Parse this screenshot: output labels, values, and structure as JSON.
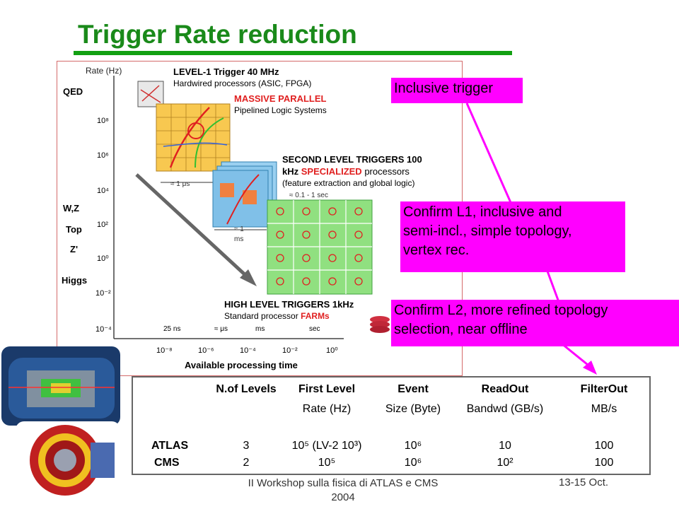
{
  "slide": {
    "title": "Trigger Rate reduction",
    "footer_left": "II Workshop sulla fisica di ATLAS e CMS\n2004",
    "footer_left_line1": "II Workshop sulla fisica di ATLAS e CMS",
    "footer_left_line2": "2004",
    "footer_right": "13-15 Oct."
  },
  "callouts": {
    "c1": "Inclusive trigger",
    "c2": "Confirm L1, inclusive and semi-incl., simple topology, vertex rec.",
    "c2_l1": "Confirm L1, inclusive and",
    "c2_l2": "semi-incl., simple topology,",
    "c2_l3": "vertex rec.",
    "c3_l1": "Confirm L2, more refined topology",
    "c3_l2": "selection, near offline"
  },
  "figure": {
    "rate_label": "Rate (Hz)",
    "physics_labels": [
      "QED",
      "W,Z",
      "Top",
      "Z'",
      "Higgs"
    ],
    "y_ticks": [
      "10⁸",
      "10⁶",
      "10⁴",
      "10²",
      "10⁰",
      "10⁻²",
      "10⁻⁴"
    ],
    "x_ticks": [
      "10⁻⁸",
      "10⁻⁶",
      "10⁻⁴",
      "10⁻²",
      "10⁰"
    ],
    "x_axis_label": "Available processing time",
    "time_marks": [
      "25 ns",
      "≈ μs",
      "ms",
      "sec"
    ],
    "l1": {
      "t1": "LEVEL-1 Trigger 40 MHz",
      "t2": "Hardwired processors (ASIC, FPGA)",
      "t3": "MASSIVE PARALLEL",
      "t4": "Pipelined Logic Systems",
      "time": "≈ 1 μs"
    },
    "l2": {
      "t1": "SECOND LEVEL TRIGGERS 100",
      "t2a": "kHz ",
      "t2b": "SPECIALIZED",
      "t2c": " processors",
      "t3": "(feature extraction and global logic)",
      "time": "≈ 0.1 - 1 sec",
      "time2a": "≈ 1",
      "time2b": "ms"
    },
    "hl": {
      "t1": "HIGH LEVEL TRIGGERS 1kHz",
      "t2a": "Standard processor ",
      "t2b": "FARMs"
    }
  },
  "table": {
    "headers": [
      "N.of Levels",
      "First Level",
      "Event",
      "ReadOut",
      "FilterOut"
    ],
    "subheaders": [
      "Rate (Hz)",
      "Size (Byte)",
      "Bandwd (GB/s)",
      "MB/s"
    ],
    "rows": [
      {
        "name": "ATLAS",
        "levels": "3",
        "first_level": "10⁵ (LV-2 10³)",
        "event": "10⁶",
        "readout": "10",
        "filterout": "100"
      },
      {
        "name": "CMS",
        "levels": "2",
        "first_level": "10⁵",
        "event": "10⁶",
        "readout": "10²",
        "filterout": "100"
      }
    ]
  },
  "colors": {
    "title": "#1a8a1a",
    "callout": "#ff00ff",
    "arrow": "#ff00ff",
    "accent_red": "#e02020"
  }
}
